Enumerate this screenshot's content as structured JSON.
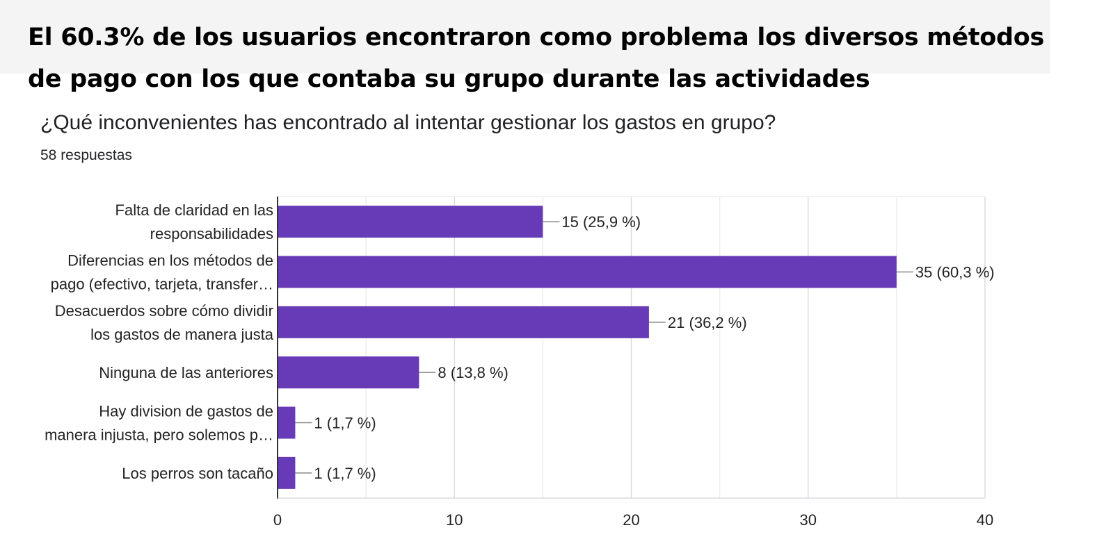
{
  "headline": {
    "line1": "El 60.3% de los usuarios encontraron como problema los diversos métodos",
    "line2": "de pago con los que contaba su grupo durante las actividades"
  },
  "chart_data": {
    "type": "bar",
    "orientation": "horizontal",
    "title": "¿Qué inconvenientes has encontrado al intentar gestionar los gastos en grupo?",
    "subtitle": "58 respuestas",
    "categories": [
      [
        "Falta de claridad en las",
        "responsabilidades"
      ],
      [
        "Diferencias en los métodos de",
        "pago (efectivo, tarjeta, transfer…"
      ],
      [
        "Desacuerdos sobre cómo dividir",
        "los gastos de manera justa"
      ],
      [
        "Ninguna de las anteriores"
      ],
      [
        "Hay division de gastos de",
        "manera injusta, pero solemos p…"
      ],
      [
        "Los perros son tacaño"
      ]
    ],
    "values": [
      15,
      35,
      21,
      8,
      1,
      1
    ],
    "data_labels": [
      "15 (25,9 %)",
      "35 (60,3 %)",
      "21 (36,2 %)",
      "8 (13,8 %)",
      "1 (1,7 %)",
      "1 (1,7 %)"
    ],
    "xlim": [
      0,
      40
    ],
    "xticks": [
      0,
      10,
      20,
      30,
      40
    ],
    "grid": true,
    "bar_color": "#673ab7"
  }
}
